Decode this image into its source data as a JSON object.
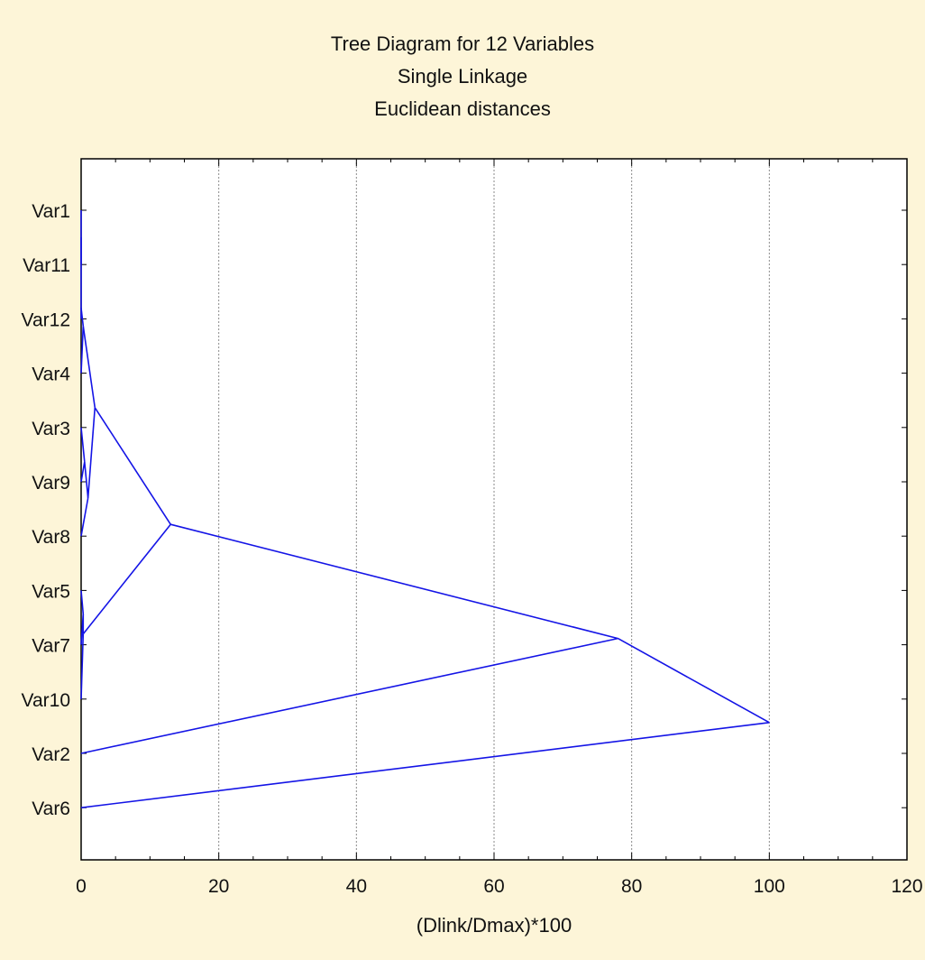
{
  "chart_data": {
    "type": "dendrogram",
    "title_lines": [
      "Tree Diagram for 12  Variables",
      "Single Linkage",
      "Euclidean distances"
    ],
    "xlabel": "(Dlink/Dmax)*100",
    "ylabel": "",
    "xlim": [
      0,
      120
    ],
    "xticks": [
      0,
      20,
      40,
      60,
      80,
      100,
      120
    ],
    "grid": "vertical-dotted",
    "leaves": [
      "Var1",
      "Var11",
      "Var12",
      "Var4",
      "Var3",
      "Var9",
      "Var8",
      "Var5",
      "Var7",
      "Var10",
      "Var2",
      "Var6"
    ],
    "merges": [
      {
        "children": [
          "Var1",
          "Var11"
        ],
        "height": 0
      },
      {
        "children": [
          "Var1+Var11",
          "Var12"
        ],
        "height": 0
      },
      {
        "children": [
          "Var1+Var11+Var12",
          "Var4"
        ],
        "height": 0.3
      },
      {
        "children": [
          "Var3",
          "Var9"
        ],
        "height": 0.5
      },
      {
        "children": [
          "Var3+Var9",
          "Var8"
        ],
        "height": 1
      },
      {
        "children": [
          "Var1+Var11+Var12+Var4",
          "Var3+Var9+Var8"
        ],
        "height": 2
      },
      {
        "children": [
          "Var5",
          "Var7"
        ],
        "height": 0.3
      },
      {
        "children": [
          "Var5+Var7",
          "Var10"
        ],
        "height": 0.3
      },
      {
        "children": [
          "cluster-A",
          "Var5+Var7+Var10"
        ],
        "height": 13
      },
      {
        "children": [
          "cluster-B",
          "Var2"
        ],
        "height": 78
      },
      {
        "children": [
          "cluster-C",
          "Var6"
        ],
        "height": 100
      }
    ],
    "line_color": "#1414e6"
  }
}
